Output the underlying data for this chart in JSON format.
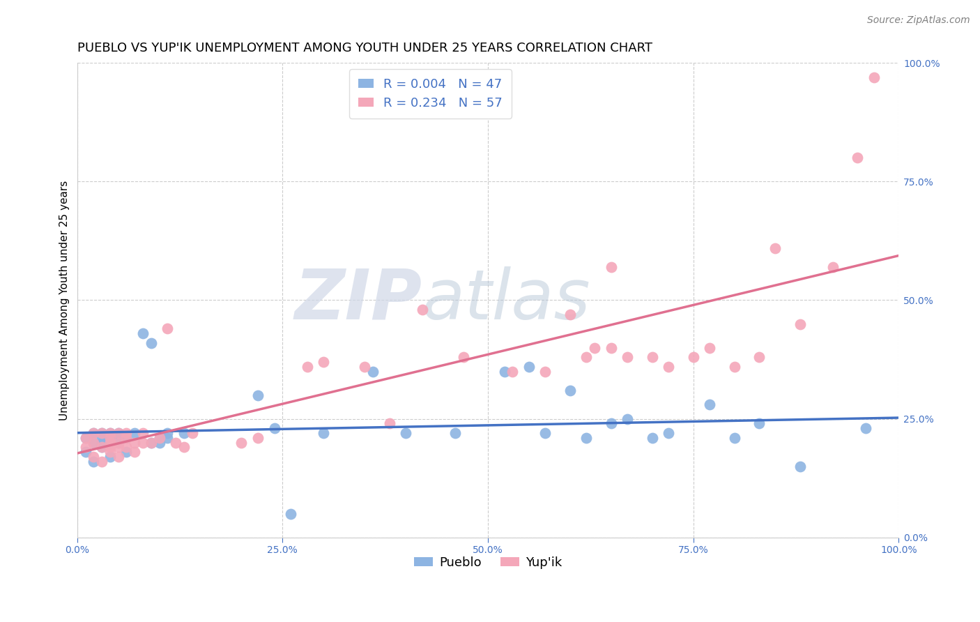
{
  "title": "PUEBLO VS YUP'IK UNEMPLOYMENT AMONG YOUTH UNDER 25 YEARS CORRELATION CHART",
  "source": "Source: ZipAtlas.com",
  "ylabel": "Unemployment Among Youth under 25 years",
  "xlim": [
    0,
    1
  ],
  "ylim": [
    0,
    1
  ],
  "yticks": [
    0.0,
    0.25,
    0.5,
    0.75,
    1.0
  ],
  "xticks": [
    0.0,
    0.25,
    0.5,
    0.75,
    1.0
  ],
  "pueblo_color": "#8db4e2",
  "yupik_color": "#f4a7b9",
  "pueblo_line_color": "#4472c4",
  "yupik_line_color": "#e07090",
  "legend_color": "#4472c4",
  "watermark_zip": "ZIP",
  "watermark_atlas": "atlas",
  "pueblo_R": 0.004,
  "pueblo_N": 47,
  "yupik_R": 0.234,
  "yupik_N": 57,
  "pueblo_x": [
    0.01,
    0.01,
    0.02,
    0.02,
    0.02,
    0.03,
    0.03,
    0.03,
    0.03,
    0.04,
    0.04,
    0.04,
    0.05,
    0.05,
    0.05,
    0.06,
    0.06,
    0.07,
    0.08,
    0.09,
    0.09,
    0.1,
    0.1,
    0.11,
    0.11,
    0.13,
    0.22,
    0.24,
    0.26,
    0.3,
    0.36,
    0.4,
    0.46,
    0.52,
    0.55,
    0.57,
    0.6,
    0.62,
    0.65,
    0.67,
    0.7,
    0.72,
    0.77,
    0.8,
    0.83,
    0.88,
    0.96
  ],
  "pueblo_y": [
    0.21,
    0.18,
    0.22,
    0.2,
    0.16,
    0.21,
    0.19,
    0.22,
    0.2,
    0.22,
    0.2,
    0.17,
    0.2,
    0.22,
    0.21,
    0.21,
    0.18,
    0.22,
    0.43,
    0.41,
    0.2,
    0.21,
    0.2,
    0.21,
    0.22,
    0.22,
    0.3,
    0.23,
    0.05,
    0.22,
    0.35,
    0.22,
    0.22,
    0.35,
    0.36,
    0.22,
    0.31,
    0.21,
    0.24,
    0.25,
    0.21,
    0.22,
    0.28,
    0.21,
    0.24,
    0.15,
    0.23
  ],
  "yupik_x": [
    0.01,
    0.01,
    0.02,
    0.02,
    0.02,
    0.03,
    0.03,
    0.03,
    0.04,
    0.04,
    0.04,
    0.04,
    0.04,
    0.05,
    0.05,
    0.05,
    0.05,
    0.06,
    0.06,
    0.06,
    0.07,
    0.07,
    0.08,
    0.08,
    0.09,
    0.1,
    0.11,
    0.12,
    0.13,
    0.14,
    0.2,
    0.22,
    0.28,
    0.3,
    0.35,
    0.38,
    0.42,
    0.47,
    0.53,
    0.57,
    0.6,
    0.62,
    0.63,
    0.65,
    0.65,
    0.67,
    0.7,
    0.72,
    0.75,
    0.77,
    0.8,
    0.83,
    0.85,
    0.88,
    0.92,
    0.95,
    0.97
  ],
  "yupik_y": [
    0.21,
    0.19,
    0.22,
    0.2,
    0.17,
    0.19,
    0.16,
    0.22,
    0.21,
    0.2,
    0.18,
    0.22,
    0.19,
    0.22,
    0.2,
    0.19,
    0.17,
    0.21,
    0.19,
    0.22,
    0.2,
    0.18,
    0.22,
    0.2,
    0.2,
    0.21,
    0.44,
    0.2,
    0.19,
    0.22,
    0.2,
    0.21,
    0.36,
    0.37,
    0.36,
    0.24,
    0.48,
    0.38,
    0.35,
    0.35,
    0.47,
    0.38,
    0.4,
    0.4,
    0.57,
    0.38,
    0.38,
    0.36,
    0.38,
    0.4,
    0.36,
    0.38,
    0.61,
    0.45,
    0.57,
    0.8,
    0.97
  ],
  "background_color": "#ffffff",
  "grid_color": "#cccccc",
  "title_fontsize": 13,
  "axis_label_fontsize": 11,
  "tick_fontsize": 10,
  "legend_fontsize": 13,
  "source_fontsize": 10
}
